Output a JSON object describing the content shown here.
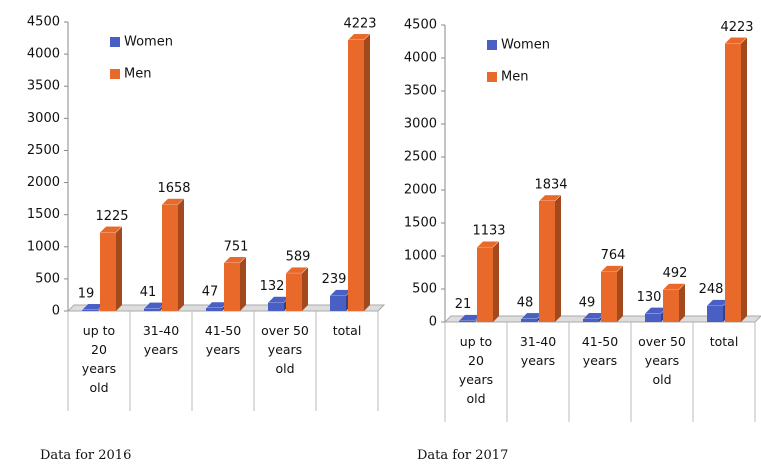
{
  "chart_data": [
    {
      "type": "bar3d",
      "caption": "Data for 2016",
      "categories": [
        "up to 20 years old",
        "31-40 years",
        "41-50 years",
        "over 50 years old",
        "total"
      ],
      "series": [
        {
          "name": "Women",
          "color": "#4a5fc4",
          "values": [
            19,
            41,
            47,
            132,
            239
          ]
        },
        {
          "name": "Men",
          "color": "#e8692a",
          "values": [
            1225,
            1658,
            751,
            589,
            4223
          ]
        }
      ],
      "ylim": [
        0,
        4500
      ],
      "yticks": [
        0,
        500,
        1000,
        1500,
        2000,
        2500,
        3000,
        3500,
        4000,
        4500
      ]
    },
    {
      "type": "bar3d",
      "caption": "Data for 2017",
      "categories": [
        "up to 20 years old",
        "31-40 years",
        "41-50 years",
        "over 50 years old",
        "total"
      ],
      "series": [
        {
          "name": "Women",
          "color": "#4a5fc4",
          "values": [
            21,
            48,
            49,
            130,
            248
          ]
        },
        {
          "name": "Men",
          "color": "#e8692a",
          "values": [
            1133,
            1834,
            764,
            492,
            4223
          ]
        }
      ],
      "ylim": [
        0,
        4500
      ],
      "yticks": [
        0,
        500,
        1000,
        1500,
        2000,
        2500,
        3000,
        3500,
        4000,
        4500
      ]
    }
  ]
}
